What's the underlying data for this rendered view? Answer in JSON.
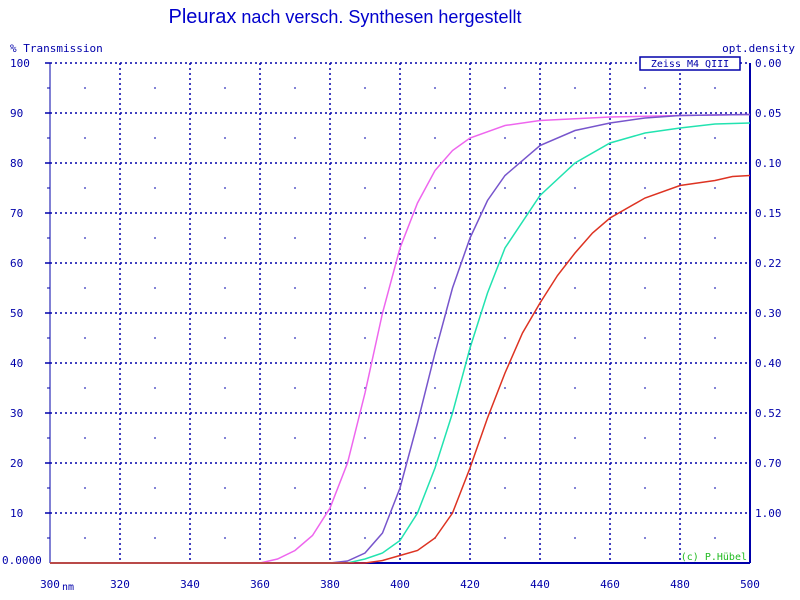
{
  "chart_data": {
    "type": "line",
    "title_main": "Pleurax",
    "title_rest": " nach versch. Synthesen hergestellt",
    "ylabel_left": "% Transmission",
    "ylabel_right": "opt.density",
    "x_unit": "nm",
    "x_ticks": [
      300,
      320,
      340,
      360,
      380,
      400,
      420,
      440,
      460,
      480,
      500
    ],
    "y_ticks": [
      100,
      90,
      80,
      70,
      60,
      50,
      40,
      30,
      20,
      10
    ],
    "y_tick_labels": [
      "100",
      "90",
      "80",
      "70",
      "60",
      "50",
      "40",
      "30",
      "20",
      "10"
    ],
    "y_zero_label": "0.0000",
    "od_labels": [
      {
        "t": 100,
        "label": "0.00"
      },
      {
        "t": 90,
        "label": "0.05"
      },
      {
        "t": 80,
        "label": "0.10"
      },
      {
        "t": 70,
        "label": "0.15"
      },
      {
        "t": 60,
        "label": "0.22"
      },
      {
        "t": 50,
        "label": "0.30"
      },
      {
        "t": 40,
        "label": "0.40"
      },
      {
        "t": 30,
        "label": "0.52"
      },
      {
        "t": 20,
        "label": "0.70"
      },
      {
        "t": 10,
        "label": "1.00"
      }
    ],
    "xlim": [
      300,
      500
    ],
    "ylim": [
      0,
      100
    ],
    "grid": true,
    "instrument_label": "Zeiss M4 QIII",
    "copyright": "(c) P.Hübel",
    "series": [
      {
        "color": "#ee66ee",
        "x": [
          360,
          365,
          370,
          375,
          380,
          385,
          390,
          395,
          400,
          405,
          410,
          415,
          420,
          430,
          440,
          460,
          480,
          500
        ],
        "y": [
          0,
          0.8,
          2.5,
          5.5,
          11,
          20,
          34,
          50,
          63,
          72,
          78.5,
          82.5,
          85,
          87.5,
          88.5,
          89.2,
          89.5,
          89.7
        ]
      },
      {
        "color": "#7755cc",
        "x": [
          380,
          385,
          390,
          395,
          400,
          405,
          410,
          415,
          420,
          425,
          430,
          440,
          450,
          460,
          470,
          480,
          490,
          500
        ],
        "y": [
          0,
          0.4,
          2,
          6,
          15,
          28,
          42,
          55,
          65,
          72.5,
          77.5,
          83.5,
          86.5,
          88,
          89,
          89.5,
          89.6,
          89.7
        ]
      },
      {
        "color": "#22e3b0",
        "x": [
          385,
          390,
          395,
          400,
          405,
          410,
          415,
          420,
          425,
          430,
          440,
          450,
          460,
          470,
          480,
          490,
          500
        ],
        "y": [
          0,
          0.8,
          2,
          4.5,
          10,
          19,
          30,
          43,
          54,
          63,
          73.5,
          80,
          84,
          86,
          87,
          87.8,
          88
        ]
      },
      {
        "color": "#dd3322",
        "x": [
          390,
          395,
          400,
          405,
          410,
          415,
          420,
          425,
          430,
          435,
          440,
          445,
          450,
          455,
          460,
          470,
          480,
          490,
          495,
          500
        ],
        "y": [
          0,
          0.5,
          1.5,
          2.5,
          5,
          10,
          19,
          29,
          38,
          46,
          52,
          57.5,
          62,
          66,
          69,
          73,
          75.5,
          76.5,
          77.3,
          77.5
        ]
      }
    ]
  }
}
